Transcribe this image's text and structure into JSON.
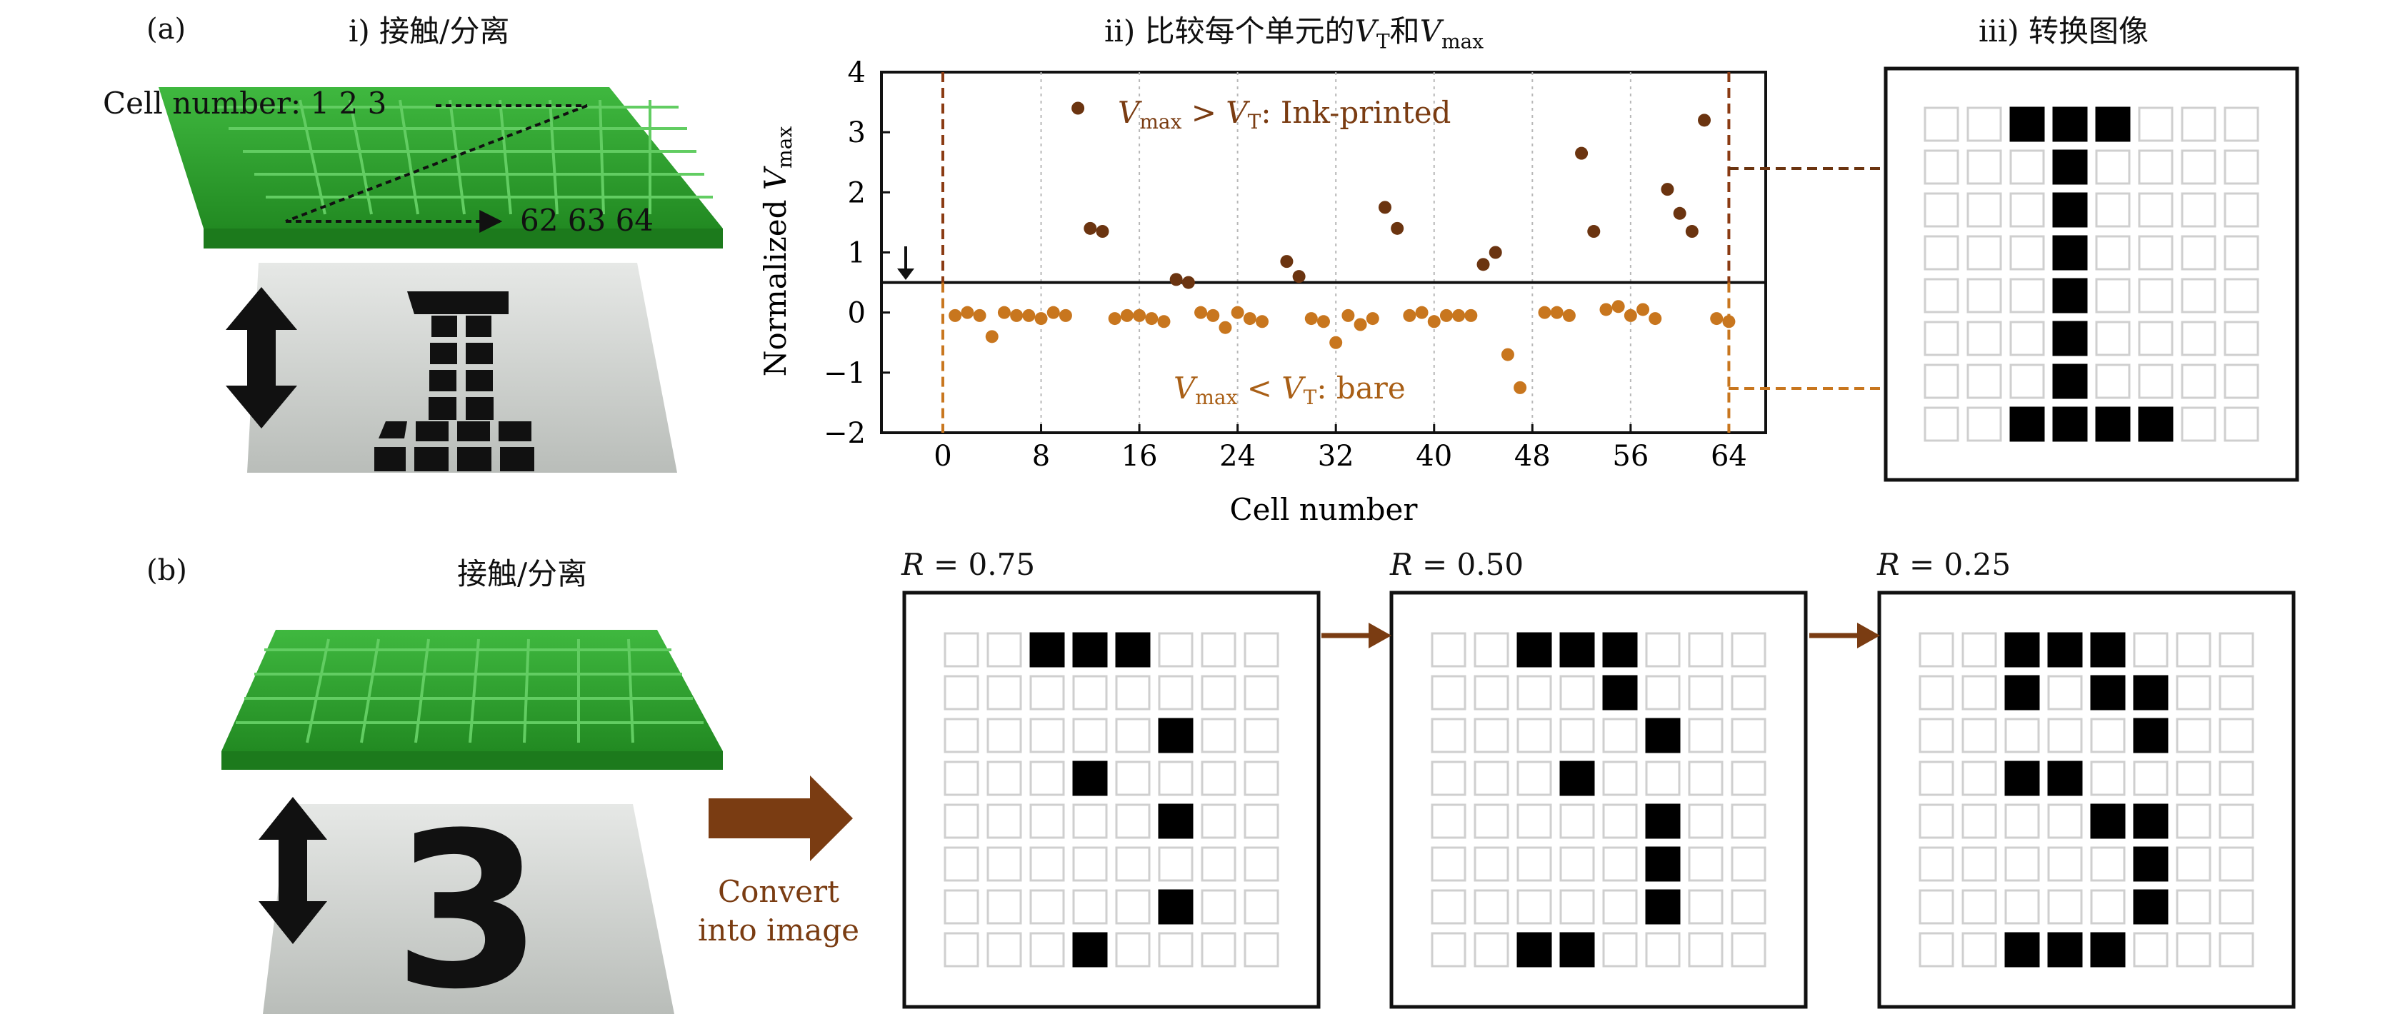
{
  "panel_a": {
    "label": "(a)",
    "step1_title": "i) 接触/分离",
    "step2_title": "ii) 比较每个单元的",
    "step2_vt": "V",
    "step2_vt_sub": "T",
    "step2_and": "和",
    "step2_vmax": "V",
    "step2_vmax_sub": "max",
    "step3_title": "iii) 转换图像",
    "cell_number_text": "Cell number: 1 2 3",
    "cell_number_end": "62 63 64"
  },
  "panel_b": {
    "label": "(b)",
    "title": "接触/分离",
    "convert_line1": "Convert",
    "convert_line2": "into image",
    "panels": [
      {
        "label": "R = 0.75",
        "r_symbol": "R",
        "r_value": "= 0.75"
      },
      {
        "label": "R = 0.50",
        "r_symbol": "R",
        "r_value": "= 0.50"
      },
      {
        "label": "R = 0.25",
        "r_symbol": "R",
        "r_value": "= 0.25"
      }
    ]
  },
  "colors": {
    "ink": "#6b3410",
    "bare": "#c8761e",
    "arrow_brown": "#7a3c12",
    "green": "#2e9a2e",
    "grid_line": "#d0d0d0"
  },
  "chart_data": {
    "type": "scatter",
    "xlabel": "Cell number",
    "ylabel": "Normalized V_max",
    "ylabel_main": "Normalized ",
    "ylabel_v": "V",
    "ylabel_sub": "max",
    "xlim": [
      -5,
      67
    ],
    "ylim": [
      -2,
      4
    ],
    "xticks": [
      0,
      8,
      16,
      24,
      32,
      40,
      48,
      56,
      64
    ],
    "xtick_labels": [
      "0",
      "8",
      "16",
      "24",
      "32",
      "40",
      "48",
      "56",
      "64"
    ],
    "yticks": [
      -2,
      -1,
      0,
      1,
      2,
      3,
      4
    ],
    "ytick_labels": [
      "−2",
      "−1",
      "0",
      "1",
      "2",
      "3",
      "4"
    ],
    "threshold": 0.5,
    "annotation_above": "Vmax > VT: Ink-printed",
    "annotation_above_v1": "V",
    "annotation_above_s1": "max",
    "annotation_above_op": " > ",
    "annotation_above_v2": "V",
    "annotation_above_s2": "T",
    "annotation_above_rest": ": Ink-printed",
    "annotation_below": "Vmax < VT: bare",
    "annotation_below_v1": "V",
    "annotation_below_s1": "max",
    "annotation_below_op": " < ",
    "annotation_below_v2": "V",
    "annotation_below_s2": "T",
    "annotation_below_rest": ": bare",
    "series": [
      {
        "name": "Ink-printed",
        "color": "#6b3410",
        "points": [
          [
            11,
            3.4
          ],
          [
            12,
            1.4
          ],
          [
            13,
            1.35
          ],
          [
            19,
            0.55
          ],
          [
            20,
            0.5
          ],
          [
            28,
            0.85
          ],
          [
            29,
            0.6
          ],
          [
            36,
            1.75
          ],
          [
            37,
            1.4
          ],
          [
            44,
            0.8
          ],
          [
            45,
            1.0
          ],
          [
            52,
            2.65
          ],
          [
            53,
            1.35
          ],
          [
            59,
            2.05
          ],
          [
            60,
            1.65
          ],
          [
            61,
            1.35
          ],
          [
            62,
            3.2
          ]
        ]
      },
      {
        "name": "Bare",
        "color": "#c8761e",
        "points": [
          [
            1,
            -0.05
          ],
          [
            2,
            0.0
          ],
          [
            3,
            -0.05
          ],
          [
            4,
            -0.4
          ],
          [
            5,
            0.0
          ],
          [
            6,
            -0.05
          ],
          [
            7,
            -0.05
          ],
          [
            8,
            -0.1
          ],
          [
            9,
            0.0
          ],
          [
            10,
            -0.05
          ],
          [
            14,
            -0.1
          ],
          [
            15,
            -0.05
          ],
          [
            16,
            -0.05
          ],
          [
            17,
            -0.1
          ],
          [
            18,
            -0.15
          ],
          [
            21,
            0.0
          ],
          [
            22,
            -0.05
          ],
          [
            23,
            -0.25
          ],
          [
            24,
            0.0
          ],
          [
            25,
            -0.1
          ],
          [
            26,
            -0.15
          ],
          [
            30,
            -0.1
          ],
          [
            31,
            -0.15
          ],
          [
            32,
            -0.5
          ],
          [
            33,
            -0.05
          ],
          [
            34,
            -0.2
          ],
          [
            35,
            -0.1
          ],
          [
            38,
            -0.05
          ],
          [
            39,
            0.0
          ],
          [
            40,
            -0.15
          ],
          [
            41,
            -0.05
          ],
          [
            42,
            -0.05
          ],
          [
            43,
            -0.05
          ],
          [
            46,
            -0.7
          ],
          [
            47,
            -1.25
          ],
          [
            49,
            0.0
          ],
          [
            50,
            0.0
          ],
          [
            51,
            -0.05
          ],
          [
            54,
            0.05
          ],
          [
            55,
            0.1
          ],
          [
            56,
            -0.05
          ],
          [
            57,
            0.05
          ],
          [
            58,
            -0.1
          ],
          [
            63,
            -0.1
          ],
          [
            64,
            -0.15
          ]
        ]
      }
    ]
  },
  "grids": {
    "digit_1": [
      "00111000",
      "00010000",
      "00010000",
      "00010000",
      "00010000",
      "00010000",
      "00010000",
      "00111100"
    ],
    "r075": [
      "00111000",
      "00000000",
      "00000100",
      "00010000",
      "00000100",
      "00000000",
      "00000100",
      "00010000"
    ],
    "r050": [
      "00111000",
      "00001000",
      "00000100",
      "00010000",
      "00000100",
      "00000100",
      "00000100",
      "00110000"
    ],
    "r025": [
      "00111000",
      "00101100",
      "00000100",
      "00110000",
      "00001100",
      "00000100",
      "00000100",
      "00111000"
    ]
  }
}
